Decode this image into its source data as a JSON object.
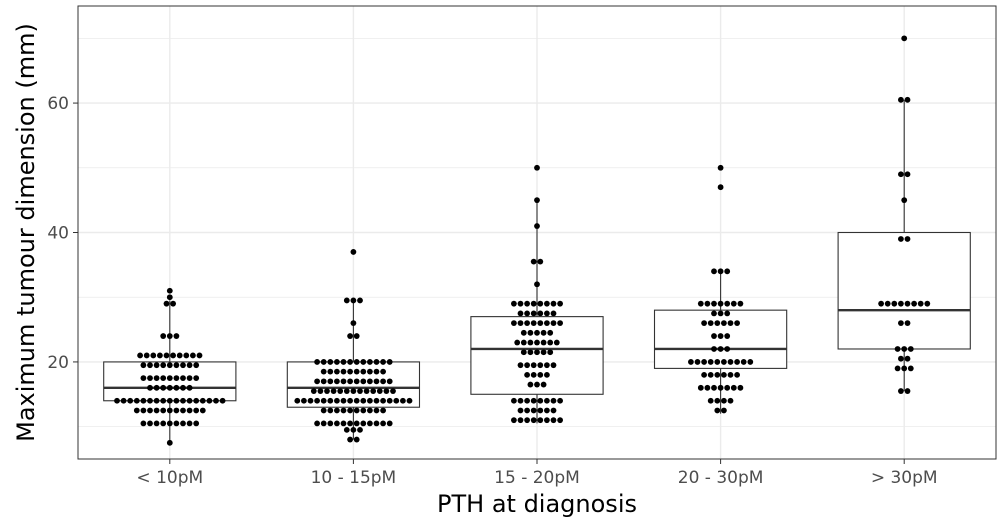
{
  "chart_data": {
    "type": "box",
    "xlabel": "PTH at diagnosis",
    "ylabel": "Maximum tumour dimension (mm)",
    "ylim": [
      5,
      75
    ],
    "yticks": [
      20,
      40,
      60
    ],
    "grid": true,
    "colors": {
      "grid": "#ebebeb",
      "box": "#333333",
      "point": "#000000",
      "background": "#ffffff"
    },
    "categories": [
      "< 10pM",
      "10 - 15pM",
      "15 - 20pM",
      "20 - 30pM",
      "> 30pM"
    ],
    "boxes": [
      {
        "category": "< 10pM",
        "whisker_low": 7.5,
        "q1": 14,
        "median": 16,
        "q3": 20,
        "whisker_high": 29.5
      },
      {
        "category": "10 - 15pM",
        "whisker_low": 8,
        "q1": 13,
        "median": 16,
        "q3": 20,
        "whisker_high": 29.5
      },
      {
        "category": "15 - 20pM",
        "whisker_low": 10.5,
        "q1": 15,
        "median": 22,
        "q3": 27,
        "whisker_high": 45
      },
      {
        "category": "20 - 30pM",
        "whisker_low": 12,
        "q1": 19,
        "median": 22,
        "q3": 28,
        "whisker_high": 34
      },
      {
        "category": "> 30pM",
        "whisker_low": 15.5,
        "q1": 22,
        "median": 28,
        "q3": 40,
        "whisker_high": 60.5
      }
    ],
    "points": [
      [
        {
          "y": 31,
          "n": 1
        },
        {
          "y": 30,
          "n": 1
        },
        {
          "y": 29,
          "n": 2
        },
        {
          "y": 24,
          "n": 3
        },
        {
          "y": 21,
          "n": 10
        },
        {
          "y": 19.5,
          "n": 9
        },
        {
          "y": 17.5,
          "n": 9
        },
        {
          "y": 16,
          "n": 7
        },
        {
          "y": 14,
          "n": 17
        },
        {
          "y": 12.5,
          "n": 11
        },
        {
          "y": 10.5,
          "n": 9
        },
        {
          "y": 7.5,
          "n": 1
        }
      ],
      [
        {
          "y": 37,
          "n": 1
        },
        {
          "y": 29.5,
          "n": 3
        },
        {
          "y": 26,
          "n": 1
        },
        {
          "y": 24,
          "n": 2
        },
        {
          "y": 20,
          "n": 12
        },
        {
          "y": 18.5,
          "n": 10
        },
        {
          "y": 17,
          "n": 12
        },
        {
          "y": 15.5,
          "n": 13
        },
        {
          "y": 14,
          "n": 18
        },
        {
          "y": 12.5,
          "n": 10
        },
        {
          "y": 10.5,
          "n": 12
        },
        {
          "y": 9.5,
          "n": 3
        },
        {
          "y": 8,
          "n": 2
        }
      ],
      [
        {
          "y": 50,
          "n": 1
        },
        {
          "y": 45,
          "n": 1
        },
        {
          "y": 41,
          "n": 1
        },
        {
          "y": 35.5,
          "n": 2
        },
        {
          "y": 32,
          "n": 1
        },
        {
          "y": 29,
          "n": 8
        },
        {
          "y": 27.5,
          "n": 6
        },
        {
          "y": 26,
          "n": 8
        },
        {
          "y": 24.5,
          "n": 5
        },
        {
          "y": 23,
          "n": 7
        },
        {
          "y": 21.5,
          "n": 5
        },
        {
          "y": 19.5,
          "n": 6
        },
        {
          "y": 18,
          "n": 4
        },
        {
          "y": 16.5,
          "n": 3
        },
        {
          "y": 14,
          "n": 8
        },
        {
          "y": 12.5,
          "n": 6
        },
        {
          "y": 11,
          "n": 8
        }
      ],
      [
        {
          "y": 50,
          "n": 1
        },
        {
          "y": 47,
          "n": 1
        },
        {
          "y": 34,
          "n": 3
        },
        {
          "y": 29,
          "n": 7
        },
        {
          "y": 27.5,
          "n": 3
        },
        {
          "y": 26,
          "n": 6
        },
        {
          "y": 24,
          "n": 3
        },
        {
          "y": 22,
          "n": 3
        },
        {
          "y": 20,
          "n": 10
        },
        {
          "y": 18,
          "n": 6
        },
        {
          "y": 16,
          "n": 7
        },
        {
          "y": 14,
          "n": 4
        },
        {
          "y": 12.5,
          "n": 2
        }
      ],
      [
        {
          "y": 70,
          "n": 1
        },
        {
          "y": 60.5,
          "n": 2
        },
        {
          "y": 49,
          "n": 2
        },
        {
          "y": 45,
          "n": 1
        },
        {
          "y": 39,
          "n": 2
        },
        {
          "y": 29,
          "n": 8
        },
        {
          "y": 26,
          "n": 2
        },
        {
          "y": 22,
          "n": 3
        },
        {
          "y": 20.5,
          "n": 2
        },
        {
          "y": 19,
          "n": 3
        },
        {
          "y": 15.5,
          "n": 2
        }
      ]
    ]
  }
}
